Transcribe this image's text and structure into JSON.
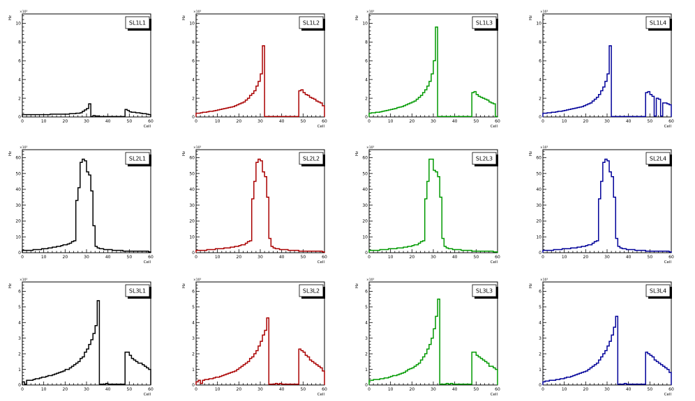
{
  "grid": {
    "rows": 3,
    "cols": 4
  },
  "chart_data": [
    {
      "type": "bar",
      "title": "SL1L1",
      "xlabel": "Cell",
      "ylabel": "Hz",
      "multiplier": "×10³",
      "xlim": [
        0,
        60
      ],
      "ylim": [
        0,
        11
      ],
      "yticks": [
        0,
        2,
        4,
        6,
        8,
        10
      ],
      "xticks": [
        0,
        10,
        20,
        30,
        40,
        50,
        60
      ],
      "color": "#000000",
      "values": [
        0.25,
        0.25,
        0.25,
        0.25,
        0.25,
        0.25,
        0.25,
        0.25,
        0.25,
        0.25,
        0.25,
        0.25,
        0.25,
        0.3,
        0.3,
        0.3,
        0.3,
        0.3,
        0.3,
        0.3,
        0.3,
        0.3,
        0.35,
        0.35,
        0.35,
        0.4,
        0.4,
        0.45,
        0.6,
        0.75,
        0.9,
        1.4,
        0.05,
        0.15,
        0.1,
        0.1,
        0.05,
        0.05,
        0.05,
        0.05,
        0.05,
        0.05,
        0.05,
        0.05,
        0.05,
        0.05,
        0.05,
        0.05,
        0.8,
        0.7,
        0.55,
        0.5,
        0.5,
        0.45,
        0.45,
        0.4,
        0.35,
        0.35,
        0.3,
        0.25
      ]
    },
    {
      "type": "bar",
      "title": "SL1L2",
      "xlabel": "Cell",
      "ylabel": "Hz",
      "multiplier": "×10³",
      "xlim": [
        0,
        60
      ],
      "ylim": [
        0,
        11
      ],
      "yticks": [
        0,
        2,
        4,
        6,
        8,
        10
      ],
      "xticks": [
        0,
        10,
        20,
        30,
        40,
        50,
        60
      ],
      "color": "#aa0000",
      "values": [
        0.4,
        0.4,
        0.45,
        0.5,
        0.5,
        0.55,
        0.6,
        0.6,
        0.65,
        0.7,
        0.75,
        0.8,
        0.85,
        0.9,
        0.95,
        1.0,
        1.05,
        1.1,
        1.2,
        1.3,
        1.4,
        1.5,
        1.6,
        1.8,
        2.0,
        2.3,
        2.5,
        2.8,
        3.3,
        3.8,
        4.6,
        7.6,
        0.05,
        0.05,
        0.05,
        0.05,
        0.05,
        0.05,
        0.05,
        0.05,
        0.05,
        0.05,
        0.05,
        0.05,
        0.05,
        0.05,
        0.05,
        0.05,
        2.8,
        2.9,
        2.6,
        2.4,
        2.3,
        2.1,
        2.0,
        1.9,
        1.7,
        1.6,
        1.5,
        1.2
      ]
    },
    {
      "type": "bar",
      "title": "SL1L3",
      "xlabel": "Cell",
      "ylabel": "Hz",
      "multiplier": "×10³",
      "xlim": [
        0,
        60
      ],
      "ylim": [
        0,
        11
      ],
      "yticks": [
        0,
        2,
        4,
        6,
        8,
        10
      ],
      "xticks": [
        0,
        10,
        20,
        30,
        40,
        50,
        60
      ],
      "color": "#009900",
      "values": [
        0.4,
        0.45,
        0.45,
        0.5,
        0.5,
        0.55,
        0.6,
        0.65,
        0.7,
        0.75,
        0.8,
        0.85,
        0.9,
        1.0,
        1.05,
        1.1,
        1.2,
        1.3,
        1.4,
        1.5,
        1.6,
        1.7,
        1.9,
        2.1,
        2.3,
        2.6,
        2.9,
        3.3,
        3.8,
        4.6,
        6.0,
        9.6,
        0.05,
        0.05,
        0.05,
        0.05,
        0.05,
        0.05,
        0.05,
        0.05,
        0.05,
        0.05,
        0.05,
        0.05,
        0.05,
        0.05,
        0.05,
        0.05,
        2.6,
        2.7,
        2.4,
        2.2,
        2.1,
        2.0,
        1.9,
        1.8,
        1.6,
        1.5,
        1.4,
        0.05
      ]
    },
    {
      "type": "bar",
      "title": "SL1L4",
      "xlabel": "Cell",
      "ylabel": "Hz",
      "multiplier": "×10³",
      "xlim": [
        0,
        60
      ],
      "ylim": [
        0,
        11
      ],
      "yticks": [
        0,
        2,
        4,
        6,
        8,
        10
      ],
      "xticks": [
        0,
        10,
        20,
        30,
        40,
        50,
        60
      ],
      "color": "#000099",
      "values": [
        0.4,
        0.4,
        0.45,
        0.45,
        0.5,
        0.5,
        0.55,
        0.6,
        0.6,
        0.65,
        0.7,
        0.75,
        0.8,
        0.85,
        0.9,
        0.95,
        1.0,
        1.05,
        1.1,
        1.2,
        1.3,
        1.4,
        1.5,
        1.7,
        1.9,
        2.1,
        2.4,
        2.8,
        3.2,
        3.8,
        4.6,
        7.6,
        0.05,
        0.05,
        0.05,
        0.05,
        0.05,
        0.05,
        0.05,
        0.05,
        0.05,
        0.05,
        0.05,
        0.05,
        0.05,
        0.05,
        0.05,
        0.05,
        2.6,
        2.7,
        2.4,
        2.2,
        0.1,
        2.0,
        1.9,
        0.1,
        1.5,
        1.5,
        1.4,
        1.3
      ]
    },
    {
      "type": "bar",
      "title": "SL2L1",
      "xlabel": "Cell",
      "ylabel": "Hz",
      "multiplier": "×10³",
      "xlim": [
        0,
        60
      ],
      "ylim": [
        0,
        65
      ],
      "yticks": [
        0,
        10,
        20,
        30,
        40,
        50,
        60
      ],
      "xticks": [
        0,
        10,
        20,
        30,
        40,
        50,
        60
      ],
      "color": "#000000",
      "values": [
        1.5,
        1.5,
        1.5,
        1.5,
        1.5,
        2,
        2,
        2,
        2,
        2.5,
        2.5,
        2.5,
        3,
        3,
        3.5,
        3.5,
        4,
        4,
        4.5,
        5,
        5,
        5.5,
        6,
        7,
        7.5,
        33,
        41,
        57,
        59,
        58,
        51,
        49,
        39,
        17,
        4,
        3,
        2.5,
        2.5,
        2,
        2,
        2,
        2,
        1.5,
        1.5,
        1.5,
        1.5,
        1.5,
        1,
        1,
        1,
        1,
        1,
        1,
        1,
        1,
        1,
        1,
        1,
        1,
        0.5
      ]
    },
    {
      "type": "bar",
      "title": "SL2L2",
      "xlabel": "Cell",
      "ylabel": "Hz",
      "multiplier": "×10³",
      "xlim": [
        0,
        60
      ],
      "ylim": [
        0,
        65
      ],
      "yticks": [
        0,
        10,
        20,
        30,
        40,
        50,
        60
      ],
      "xticks": [
        0,
        10,
        20,
        30,
        40,
        50,
        60
      ],
      "color": "#aa0000",
      "values": [
        1.5,
        1.5,
        1.5,
        1.5,
        1.5,
        2,
        2,
        2,
        2,
        2.5,
        2.5,
        2.5,
        2.5,
        3,
        3,
        3,
        3.5,
        3.5,
        4,
        4,
        4.5,
        5,
        5,
        6,
        7,
        7.5,
        34,
        45,
        57,
        59,
        58,
        51,
        48,
        35,
        9,
        4,
        3,
        2.5,
        2.5,
        2,
        2,
        2,
        2,
        1.5,
        1.5,
        1.5,
        1.5,
        1.5,
        1,
        1,
        1,
        1,
        1,
        1,
        1,
        1,
        1,
        1,
        1,
        0.5
      ]
    },
    {
      "type": "bar",
      "title": "SL2L3",
      "xlabel": "Cell",
      "ylabel": "Hz",
      "multiplier": "×10³",
      "xlim": [
        0,
        60
      ],
      "ylim": [
        0,
        65
      ],
      "yticks": [
        0,
        10,
        20,
        30,
        40,
        50,
        60
      ],
      "xticks": [
        0,
        10,
        20,
        30,
        40,
        50,
        60
      ],
      "color": "#009900",
      "values": [
        1.5,
        1.5,
        1.5,
        1.5,
        1.5,
        2,
        2,
        2,
        2,
        2.5,
        2.5,
        2.5,
        2.5,
        3,
        3,
        3,
        3.5,
        3.5,
        4,
        4,
        4.5,
        5,
        5,
        6,
        7,
        7.5,
        34,
        45,
        59,
        59,
        52,
        51,
        48,
        35,
        9,
        4,
        3,
        2.5,
        2.5,
        2,
        2,
        2,
        2,
        1.5,
        1.5,
        1.5,
        1.5,
        1.5,
        1,
        1,
        1,
        1,
        1,
        1,
        1,
        1,
        1,
        1,
        0.5,
        0.5
      ]
    },
    {
      "type": "bar",
      "title": "SL2L4",
      "xlabel": "Cell",
      "ylabel": "Hz",
      "multiplier": "×10³",
      "xlim": [
        0,
        60
      ],
      "ylim": [
        0,
        65
      ],
      "yticks": [
        0,
        10,
        20,
        30,
        40,
        50,
        60
      ],
      "xticks": [
        0,
        10,
        20,
        30,
        40,
        50,
        60
      ],
      "color": "#000099",
      "values": [
        1.5,
        1.5,
        1.5,
        1.5,
        1.5,
        2,
        2,
        2,
        2,
        2.5,
        2.5,
        2.5,
        2.5,
        3,
        3,
        3,
        3.5,
        3.5,
        4,
        4,
        4.5,
        5,
        5,
        6,
        7,
        7.5,
        34,
        45,
        57,
        59,
        58,
        51,
        48,
        35,
        9,
        4,
        3,
        2.5,
        2.5,
        2,
        2,
        2,
        2,
        1.5,
        1.5,
        1.5,
        1.5,
        1.5,
        1,
        1,
        1,
        1,
        1,
        1,
        1,
        1,
        1,
        1,
        1,
        0.5
      ]
    },
    {
      "type": "bar",
      "title": "SL3L1",
      "xlabel": "Cell",
      "ylabel": "Hz",
      "multiplier": "×10³",
      "xlim": [
        0,
        60
      ],
      "ylim": [
        0,
        6.6
      ],
      "yticks": [
        0,
        1,
        2,
        3,
        4,
        5,
        6
      ],
      "xticks": [
        0,
        10,
        20,
        30,
        40,
        50,
        60
      ],
      "color": "#000000",
      "values": [
        0.2,
        0.05,
        0.3,
        0.3,
        0.3,
        0.35,
        0.4,
        0.4,
        0.45,
        0.5,
        0.5,
        0.55,
        0.6,
        0.6,
        0.65,
        0.7,
        0.75,
        0.8,
        0.85,
        0.9,
        1.0,
        1.0,
        1.1,
        1.2,
        1.3,
        1.4,
        1.5,
        1.7,
        1.8,
        2.1,
        2.3,
        2.6,
        2.9,
        3.3,
        3.8,
        5.4,
        0.05,
        0.05,
        0.05,
        0.1,
        0.05,
        0.05,
        0.05,
        0.05,
        0.05,
        0.05,
        0.05,
        0.05,
        2.1,
        2.1,
        1.9,
        1.7,
        1.6,
        1.5,
        1.4,
        1.4,
        1.3,
        1.2,
        1.1,
        1.0
      ]
    },
    {
      "type": "bar",
      "title": "SL3L2",
      "xlabel": "Cell",
      "ylabel": "Hz",
      "multiplier": "×10³",
      "xlim": [
        0,
        60
      ],
      "ylim": [
        0,
        6.6
      ],
      "yticks": [
        0,
        1,
        2,
        3,
        4,
        5,
        6
      ],
      "xticks": [
        0,
        10,
        20,
        30,
        40,
        50,
        60
      ],
      "color": "#aa0000",
      "values": [
        0.2,
        0.3,
        0.1,
        0.3,
        0.35,
        0.35,
        0.4,
        0.4,
        0.45,
        0.5,
        0.5,
        0.55,
        0.6,
        0.65,
        0.7,
        0.75,
        0.8,
        0.85,
        0.9,
        1.0,
        1.1,
        1.2,
        1.3,
        1.4,
        1.5,
        1.7,
        1.8,
        2.0,
        2.2,
        2.5,
        2.8,
        3.2,
        3.5,
        4.3,
        0.05,
        0.05,
        0.05,
        0.1,
        0.05,
        0.1,
        0.05,
        0.05,
        0.05,
        0.05,
        0.05,
        0.05,
        0.05,
        0.05,
        2.3,
        2.2,
        2.1,
        1.9,
        1.8,
        1.6,
        1.5,
        1.4,
        1.3,
        1.2,
        1.1,
        0.9
      ]
    },
    {
      "type": "bar",
      "title": "SL3L3",
      "xlabel": "Cell",
      "ylabel": "Hz",
      "multiplier": "×10³",
      "xlim": [
        0,
        60
      ],
      "ylim": [
        0,
        6.6
      ],
      "yticks": [
        0,
        1,
        2,
        3,
        4,
        5,
        6
      ],
      "xticks": [
        0,
        10,
        20,
        30,
        40,
        50,
        60
      ],
      "color": "#009900",
      "values": [
        0.3,
        0.3,
        0.35,
        0.35,
        0.35,
        0.4,
        0.4,
        0.45,
        0.45,
        0.5,
        0.55,
        0.6,
        0.6,
        0.65,
        0.7,
        0.75,
        0.8,
        0.9,
        1.0,
        1.05,
        1.1,
        1.2,
        1.3,
        1.4,
        1.6,
        1.8,
        2.0,
        2.3,
        2.6,
        3.0,
        3.6,
        4.4,
        5.5,
        0.05,
        0.05,
        0.05,
        0.1,
        0.05,
        0.1,
        0.05,
        0.05,
        0.05,
        0.05,
        0.05,
        0.05,
        0.05,
        0.05,
        0.05,
        2.1,
        2.1,
        1.9,
        1.8,
        1.7,
        1.6,
        1.5,
        1.4,
        1.2,
        1.2,
        1.1,
        1.0
      ]
    },
    {
      "type": "bar",
      "title": "SL3L4",
      "xlabel": "Cell",
      "ylabel": "Hz",
      "multiplier": "×10³",
      "xlim": [
        0,
        60
      ],
      "ylim": [
        0,
        6.6
      ],
      "yticks": [
        0,
        1,
        2,
        3,
        4,
        5,
        6
      ],
      "xticks": [
        0,
        10,
        20,
        30,
        40,
        50,
        60
      ],
      "color": "#000099",
      "values": [
        0.2,
        0.25,
        0.25,
        0.3,
        0.3,
        0.3,
        0.35,
        0.35,
        0.4,
        0.4,
        0.45,
        0.5,
        0.5,
        0.55,
        0.6,
        0.65,
        0.7,
        0.75,
        0.8,
        0.85,
        0.9,
        1.0,
        1.1,
        1.2,
        1.3,
        1.4,
        1.6,
        1.8,
        2.0,
        2.2,
        2.5,
        2.8,
        3.2,
        3.7,
        4.4,
        0.05,
        0.05,
        0.05,
        0.1,
        0.05,
        0.05,
        0.05,
        0.05,
        0.05,
        0.05,
        0.05,
        0.05,
        0.05,
        2.1,
        2.0,
        1.9,
        1.8,
        1.6,
        1.5,
        1.4,
        1.3,
        1.2,
        1.1,
        1.0,
        0.8
      ]
    }
  ]
}
